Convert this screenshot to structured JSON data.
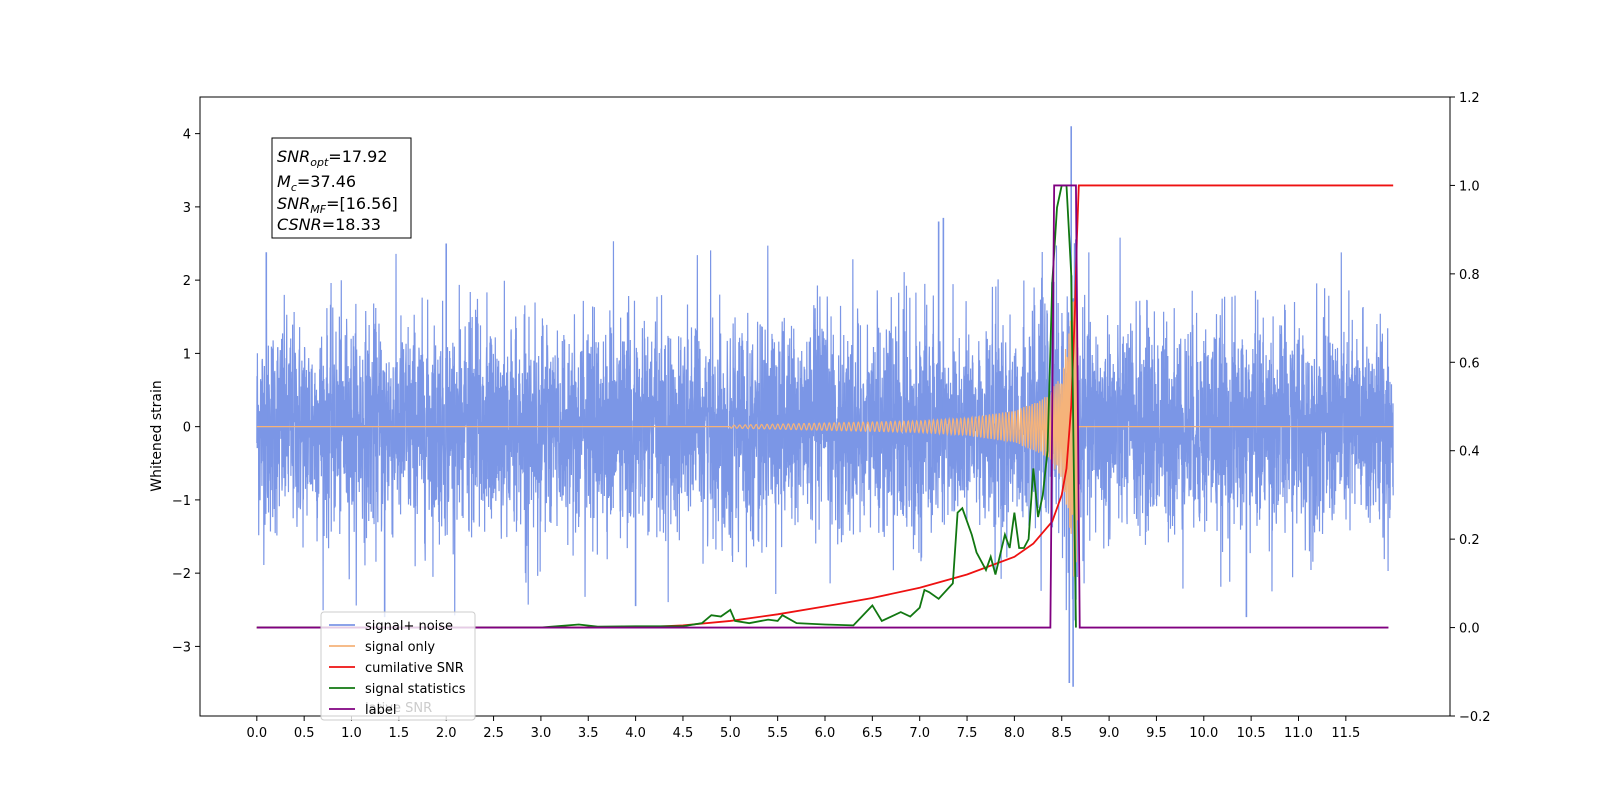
{
  "chart_data": {
    "type": "line",
    "title": "",
    "xlabel": "",
    "ylabel": "Whitened strain",
    "xlim": [
      -0.6,
      12.6
    ],
    "ylim": [
      -3.95,
      4.5
    ],
    "y2lim": [
      -0.2,
      1.2
    ],
    "grid": false,
    "x_ticks": [
      "0.0",
      "0.5",
      "1.0",
      "1.5",
      "2.0",
      "2.5",
      "3.0",
      "3.5",
      "4.0",
      "4.5",
      "5.0",
      "5.5",
      "6.0",
      "6.5",
      "7.0",
      "7.5",
      "8.0",
      "8.5",
      "9.0",
      "9.5",
      "10.0",
      "10.5",
      "11.0",
      "11.5"
    ],
    "y_ticks": [
      "4",
      "3",
      "2",
      "1",
      "0",
      "−1",
      "−2",
      "−3"
    ],
    "y2_ticks": [
      "1.2",
      "1.0",
      "0.8",
      "0.6",
      "0.4",
      "0.2",
      "0.0",
      "−0.2"
    ],
    "legend_position": "lower-left",
    "annotation": {
      "snr_opt_label": "SNR",
      "snr_opt_sub": "opt",
      "snr_opt_value": "=17.92",
      "mc_label": "M",
      "mc_sub": "c",
      "mc_value": "=37.46",
      "snr_mf_label": "SNR",
      "snr_mf_sub": "MF",
      "snr_mf_value": "=[16.56]",
      "csnr_label": "CSNR",
      "csnr_value": "=18.33"
    },
    "series": [
      {
        "name": "signal+ noise",
        "color": "#7b96e6",
        "axis": "left",
        "description_x_range": [
          0.0,
          12.0
        ],
        "noise_std": 0.72,
        "peak": [
          8.6,
          4.1
        ],
        "trough": [
          8.62,
          -3.55
        ]
      },
      {
        "name": "signal only",
        "color": "#f5b37a",
        "axis": "left",
        "chirp_amplitude": [
          [
            5.0,
            0.02
          ],
          [
            6.0,
            0.05
          ],
          [
            7.0,
            0.08
          ],
          [
            7.5,
            0.12
          ],
          [
            8.0,
            0.22
          ],
          [
            8.3,
            0.38
          ],
          [
            8.5,
            0.7
          ],
          [
            8.6,
            1.6
          ],
          [
            8.65,
            2.4
          ],
          [
            8.68,
            0.0
          ]
        ]
      },
      {
        "name": "cumilative SNR",
        "color": "#ee1111",
        "axis": "right",
        "x": [
          0.0,
          1.0,
          2.0,
          3.0,
          4.0,
          4.5,
          5.0,
          5.5,
          6.0,
          6.5,
          7.0,
          7.5,
          8.0,
          8.2,
          8.4,
          8.5,
          8.55,
          8.6,
          8.64,
          8.66,
          8.68,
          9.0,
          12.0
        ],
        "values": [
          0.0,
          0.0,
          0.0,
          0.0,
          0.0,
          0.005,
          0.015,
          0.03,
          0.048,
          0.067,
          0.09,
          0.12,
          0.16,
          0.19,
          0.24,
          0.3,
          0.36,
          0.5,
          0.72,
          0.88,
          1.0,
          1.0,
          1.0
        ]
      },
      {
        "name": "signal statistics",
        "color": "#117711",
        "axis": "right",
        "x": [
          0.0,
          3.0,
          3.4,
          3.6,
          4.0,
          4.5,
          4.7,
          4.8,
          4.9,
          5.0,
          5.05,
          5.2,
          5.4,
          5.5,
          5.55,
          5.7,
          6.0,
          6.3,
          6.5,
          6.6,
          6.8,
          6.9,
          7.0,
          7.05,
          7.1,
          7.2,
          7.35,
          7.4,
          7.45,
          7.5,
          7.55,
          7.6,
          7.7,
          7.75,
          7.8,
          7.9,
          7.95,
          8.0,
          8.05,
          8.1,
          8.15,
          8.2,
          8.25,
          8.3,
          8.35,
          8.4,
          8.45,
          8.5,
          8.55,
          8.6,
          8.65
        ],
        "values": [
          0.0,
          0.0,
          0.007,
          0.002,
          0.003,
          0.003,
          0.01,
          0.028,
          0.025,
          0.04,
          0.015,
          0.01,
          0.018,
          0.015,
          0.028,
          0.01,
          0.007,
          0.005,
          0.05,
          0.015,
          0.035,
          0.025,
          0.045,
          0.085,
          0.08,
          0.065,
          0.1,
          0.26,
          0.27,
          0.24,
          0.21,
          0.17,
          0.13,
          0.16,
          0.12,
          0.21,
          0.18,
          0.26,
          0.18,
          0.18,
          0.2,
          0.36,
          0.25,
          0.3,
          0.4,
          0.78,
          0.95,
          1.0,
          1.0,
          0.8,
          0.0
        ]
      },
      {
        "name": "label",
        "color": "#800080",
        "axis": "right",
        "x": [
          0.0,
          8.38,
          8.42,
          8.65,
          8.69,
          11.95
        ],
        "values": [
          0.0,
          0.0,
          1.0,
          1.0,
          0.0,
          0.0
        ]
      }
    ],
    "legend_entries": [
      "signal+ noise",
      "signal only",
      "cumilative SNR",
      "signal statistics",
      "label"
    ],
    "legend_overlap_text": "lative SNR"
  }
}
